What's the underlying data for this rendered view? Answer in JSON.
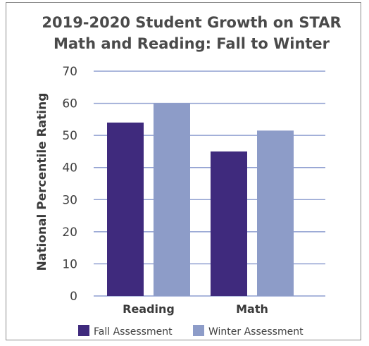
{
  "chart_data": {
    "type": "bar",
    "title_lines": [
      "2019-2020 Student Growth on STAR",
      "Math and Reading: Fall to Winter"
    ],
    "ylabel": "National Percentile Rating",
    "categories": [
      "Reading",
      "Math"
    ],
    "series": [
      {
        "name": "Fall Assessment",
        "values": [
          54,
          45
        ],
        "color": "#3f2a7d"
      },
      {
        "name": "Winter Assessment",
        "values": [
          60,
          51.5
        ],
        "color": "#8d9cc8"
      }
    ],
    "ylim": [
      0,
      70
    ],
    "yticks": [
      0,
      10,
      20,
      30,
      40,
      50,
      60,
      70
    ],
    "grid": true,
    "gridline_color": "#8f9fd0",
    "legend_placement": "bottom"
  }
}
